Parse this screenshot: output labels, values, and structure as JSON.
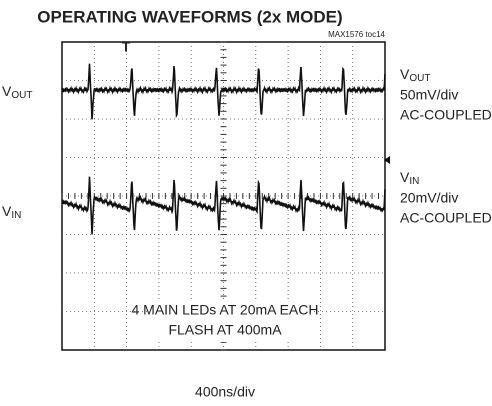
{
  "title": "OPERATING WAVEFORMS (2x MODE)",
  "figure_id": "MAX1576 toc14",
  "left_labels": [
    {
      "main": "V",
      "sub": "OUT"
    },
    {
      "main": "V",
      "sub": "IN"
    }
  ],
  "right_labels": [
    {
      "main": "V",
      "sub": "OUT",
      "scale": "50mV/div",
      "coupling": "AC-COUPLED"
    },
    {
      "main": "V",
      "sub": "IN",
      "scale": "20mV/div",
      "coupling": "AC-COUPLED"
    }
  ],
  "annotation": [
    "4 MAIN LEDs AT 20mA EACH",
    "FLASH AT 400mA"
  ],
  "time_scale": "400ns/div"
}
